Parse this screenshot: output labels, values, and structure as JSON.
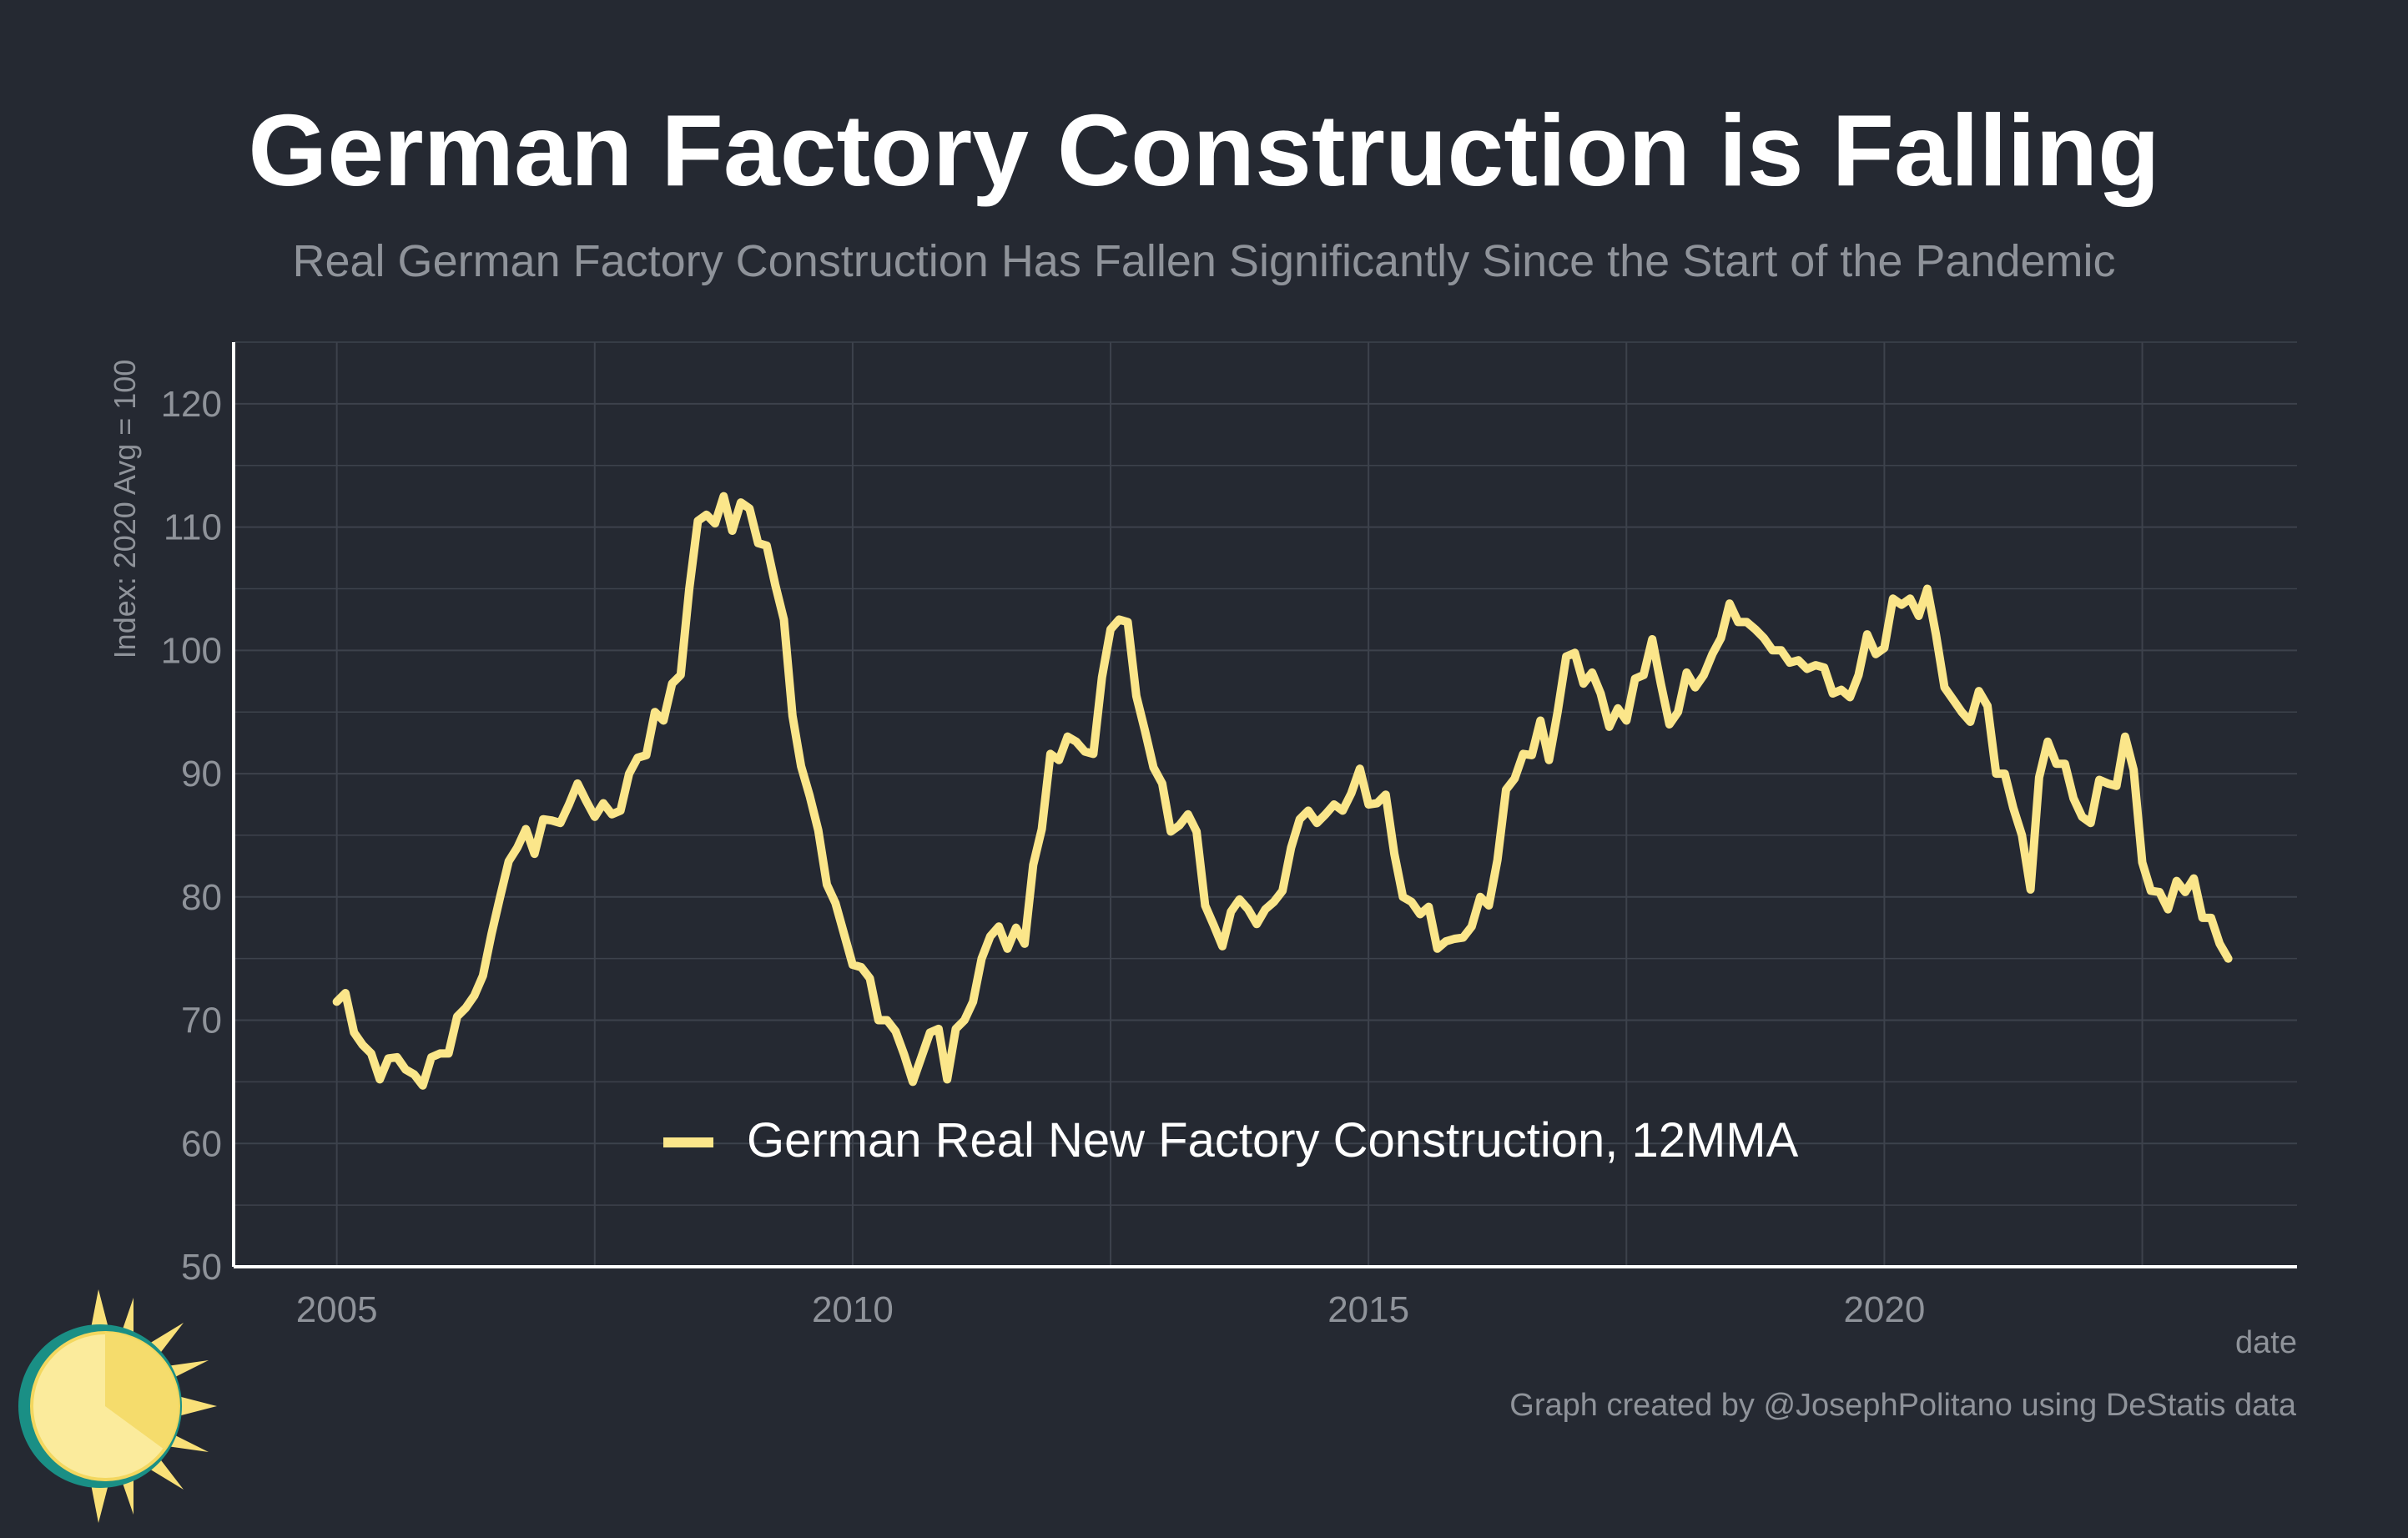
{
  "header": {
    "title": "German Factory Construction is Falling",
    "subtitle": "Real German Factory Construction Has Fallen Significantly Since the Start of the Pandemic"
  },
  "footer": {
    "caption": "Graph created by @JosephPolitano using DeStatis data"
  },
  "colors": {
    "background": "#252932",
    "grid": "#3d424c",
    "axis": "#ffffff",
    "tick_text": "#8f939a",
    "series": "#fbe68a",
    "logo_ring": "#1a8f85",
    "logo_sun": "#f9e078"
  },
  "chart_data": {
    "type": "line",
    "title": "German Factory Construction is Falling",
    "subtitle": "Real German Factory Construction Has Fallen Significantly Since the Start of the Pandemic",
    "xlabel": "date",
    "ylabel": "Index: 2020 Avg = 100",
    "xlim": [
      "2004-01",
      "2024-01"
    ],
    "ylim": [
      50,
      125
    ],
    "x_ticks": [
      "2005",
      "2010",
      "2015",
      "2020"
    ],
    "y_ticks": [
      "50",
      "60",
      "70",
      "80",
      "90",
      "100",
      "110",
      "120"
    ],
    "grid": true,
    "legend_position": "bottom-center",
    "series": [
      {
        "name": "German Real New Factory Construction, 12MMA",
        "color": "#fbe68a",
        "x": [
          "2005-01",
          "2005-02",
          "2005-03",
          "2005-04",
          "2005-05",
          "2005-06",
          "2005-07",
          "2005-08",
          "2005-09",
          "2005-10",
          "2005-11",
          "2005-12",
          "2006-01",
          "2006-02",
          "2006-03",
          "2006-04",
          "2006-05",
          "2006-06",
          "2006-07",
          "2006-08",
          "2006-09",
          "2006-10",
          "2006-11",
          "2006-12",
          "2007-01",
          "2007-02",
          "2007-03",
          "2007-04",
          "2007-05",
          "2007-06",
          "2007-07",
          "2007-08",
          "2007-09",
          "2007-10",
          "2007-11",
          "2007-12",
          "2008-01",
          "2008-02",
          "2008-03",
          "2008-04",
          "2008-05",
          "2008-06",
          "2008-07",
          "2008-08",
          "2008-09",
          "2008-10",
          "2008-11",
          "2008-12",
          "2009-01",
          "2009-02",
          "2009-03",
          "2009-04",
          "2009-05",
          "2009-06",
          "2009-07",
          "2009-08",
          "2009-09",
          "2009-10",
          "2009-11",
          "2009-12",
          "2010-01",
          "2010-02",
          "2010-03",
          "2010-04",
          "2010-05",
          "2010-06",
          "2010-07",
          "2010-08",
          "2010-09",
          "2010-10",
          "2010-11",
          "2010-12",
          "2011-01",
          "2011-02",
          "2011-03",
          "2011-04",
          "2011-05",
          "2011-06",
          "2011-07",
          "2011-08",
          "2011-09",
          "2011-10",
          "2011-11",
          "2011-12",
          "2012-01",
          "2012-02",
          "2012-03",
          "2012-04",
          "2012-05",
          "2012-06",
          "2012-07",
          "2012-08",
          "2012-09",
          "2012-10",
          "2012-11",
          "2012-12",
          "2013-01",
          "2013-02",
          "2013-03",
          "2013-04",
          "2013-05",
          "2013-06",
          "2013-07",
          "2013-08",
          "2013-09",
          "2013-10",
          "2013-11",
          "2013-12",
          "2014-01",
          "2014-02",
          "2014-03",
          "2014-04",
          "2014-05",
          "2014-06",
          "2014-07",
          "2014-08",
          "2014-09",
          "2014-10",
          "2014-11",
          "2014-12",
          "2015-01",
          "2015-02",
          "2015-03",
          "2015-04",
          "2015-05",
          "2015-06",
          "2015-07",
          "2015-08",
          "2015-09",
          "2015-10",
          "2015-11",
          "2015-12",
          "2016-01",
          "2016-02",
          "2016-03",
          "2016-04",
          "2016-05",
          "2016-06",
          "2016-07",
          "2016-08",
          "2016-09",
          "2016-10",
          "2016-11",
          "2016-12",
          "2017-01",
          "2017-02",
          "2017-03",
          "2017-04",
          "2017-05",
          "2017-06",
          "2017-07",
          "2017-08",
          "2017-09",
          "2017-10",
          "2017-11",
          "2017-12",
          "2018-01",
          "2018-02",
          "2018-03",
          "2018-04",
          "2018-05",
          "2018-06",
          "2018-07",
          "2018-08",
          "2018-09",
          "2018-10",
          "2018-11",
          "2018-12",
          "2019-01",
          "2019-02",
          "2019-03",
          "2019-04",
          "2019-05",
          "2019-06",
          "2019-07",
          "2019-08",
          "2019-09",
          "2019-10",
          "2019-11",
          "2019-12",
          "2020-01",
          "2020-02",
          "2020-03",
          "2020-04",
          "2020-05",
          "2020-06",
          "2020-07",
          "2020-08",
          "2020-09",
          "2020-10",
          "2020-11",
          "2020-12",
          "2021-01",
          "2021-02",
          "2021-03",
          "2021-04",
          "2021-05",
          "2021-06",
          "2021-07",
          "2021-08",
          "2021-09",
          "2021-10",
          "2021-11",
          "2021-12",
          "2022-01",
          "2022-02",
          "2022-03",
          "2022-04",
          "2022-05",
          "2022-06",
          "2022-07",
          "2022-08",
          "2022-09",
          "2022-10",
          "2022-11",
          "2022-12",
          "2023-01",
          "2023-02",
          "2023-03",
          "2023-04",
          "2023-05"
        ],
        "y": [
          71.5,
          72.2,
          69.0,
          68.0,
          67.3,
          65.2,
          66.9,
          67.0,
          66.0,
          65.6,
          64.7,
          67.0,
          67.3,
          67.3,
          70.3,
          71.0,
          72.0,
          73.6,
          77.0,
          80.0,
          82.9,
          84.0,
          85.5,
          83.5,
          86.3,
          86.2,
          86.0,
          87.5,
          89.2,
          87.8,
          86.5,
          87.6,
          86.7,
          87.0,
          90.0,
          91.3,
          91.5,
          95.0,
          94.3,
          97.3,
          98.0,
          105.0,
          110.5,
          111.0,
          110.3,
          112.5,
          109.7,
          112.0,
          111.5,
          108.7,
          108.5,
          105.3,
          102.5,
          94.7,
          90.6,
          88.2,
          85.4,
          81.0,
          79.5,
          77.0,
          74.5,
          74.3,
          73.4,
          70.0,
          70.0,
          69.1,
          67.2,
          65.0,
          67.0,
          69.0,
          69.3,
          65.2,
          69.3,
          70.0,
          71.5,
          75.0,
          76.8,
          77.6,
          75.8,
          77.5,
          76.2,
          82.6,
          85.5,
          91.6,
          91.1,
          93.0,
          92.6,
          91.8,
          91.6,
          97.8,
          101.7,
          102.5,
          102.3,
          96.3,
          93.5,
          90.5,
          89.2,
          85.3,
          85.8,
          86.7,
          85.3,
          79.3,
          77.7,
          76.0,
          78.8,
          79.8,
          79.0,
          77.8,
          79.0,
          79.6,
          80.5,
          84.0,
          86.3,
          87.0,
          86.0,
          86.7,
          87.5,
          87.0,
          88.4,
          90.4,
          87.5,
          87.6,
          88.3,
          83.5,
          80.0,
          79.6,
          78.6,
          79.2,
          75.8,
          76.4,
          76.6,
          76.7,
          77.6,
          80.0,
          79.3,
          83.0,
          88.7,
          89.6,
          91.6,
          91.5,
          94.3,
          91.1,
          95.0,
          99.5,
          99.8,
          97.3,
          98.2,
          96.5,
          93.8,
          95.3,
          94.3,
          97.7,
          98.0,
          100.9,
          97.3,
          94.0,
          95.0,
          98.2,
          97.0,
          98.0,
          99.7,
          101.0,
          103.8,
          102.3,
          102.3,
          101.7,
          101.0,
          100.0,
          100.0,
          99.0,
          99.2,
          98.5,
          98.8,
          98.6,
          96.5,
          96.8,
          96.2,
          98.0,
          101.3,
          99.7,
          100.2,
          104.2,
          103.7,
          104.2,
          102.8,
          105.0,
          101.3,
          97.0,
          96.0,
          95.0,
          94.2,
          96.7,
          95.5,
          90.0,
          90.0,
          87.2,
          85.0,
          80.6,
          89.7,
          92.6,
          90.8,
          90.8,
          88.0,
          86.5,
          86.0,
          89.5,
          89.2,
          89.0,
          93.0,
          90.3,
          82.8,
          80.5,
          80.4,
          79.0,
          81.3,
          80.4,
          81.5,
          78.3,
          78.3,
          76.2,
          75.0
        ]
      }
    ]
  }
}
